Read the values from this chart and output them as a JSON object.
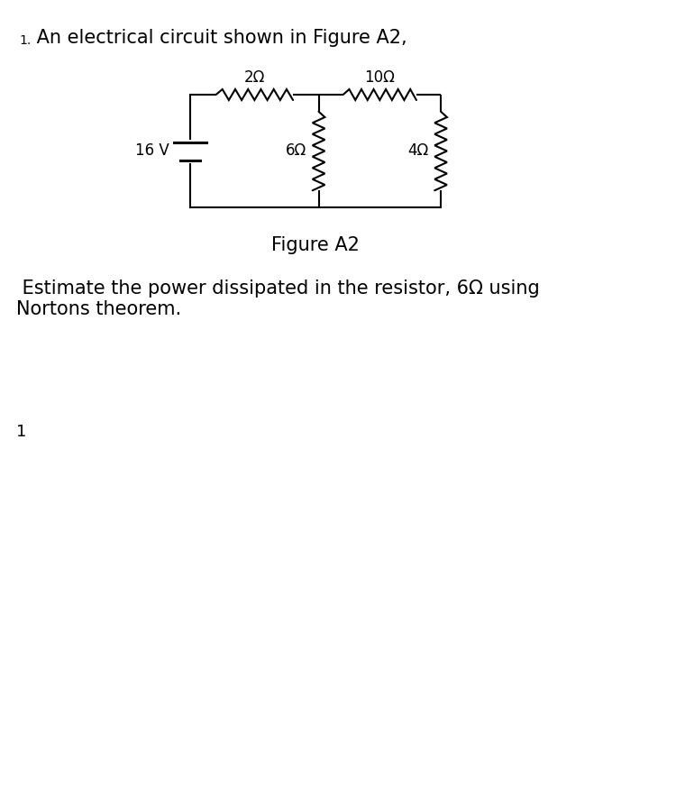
{
  "title_number": "1.",
  "title_text": " An electrical circuit shown in Figure A2,",
  "figure_label": "Figure A2",
  "question_text": " Estimate the power dissipated in the resistor, 6Ω using\nNortons theorem.",
  "page_number": "1",
  "background_color": "#ffffff",
  "line_color": "#000000",
  "resistor_2ohm_label": "2Ω",
  "resistor_10ohm_label": "10Ω",
  "resistor_6ohm_label": "6Ω",
  "resistor_4ohm_label": "4Ω",
  "voltage_label": "16 V",
  "title_fontsize": 15,
  "label_fontsize": 12,
  "fig_label_fontsize": 15,
  "question_fontsize": 15,
  "number_fontsize": 10
}
